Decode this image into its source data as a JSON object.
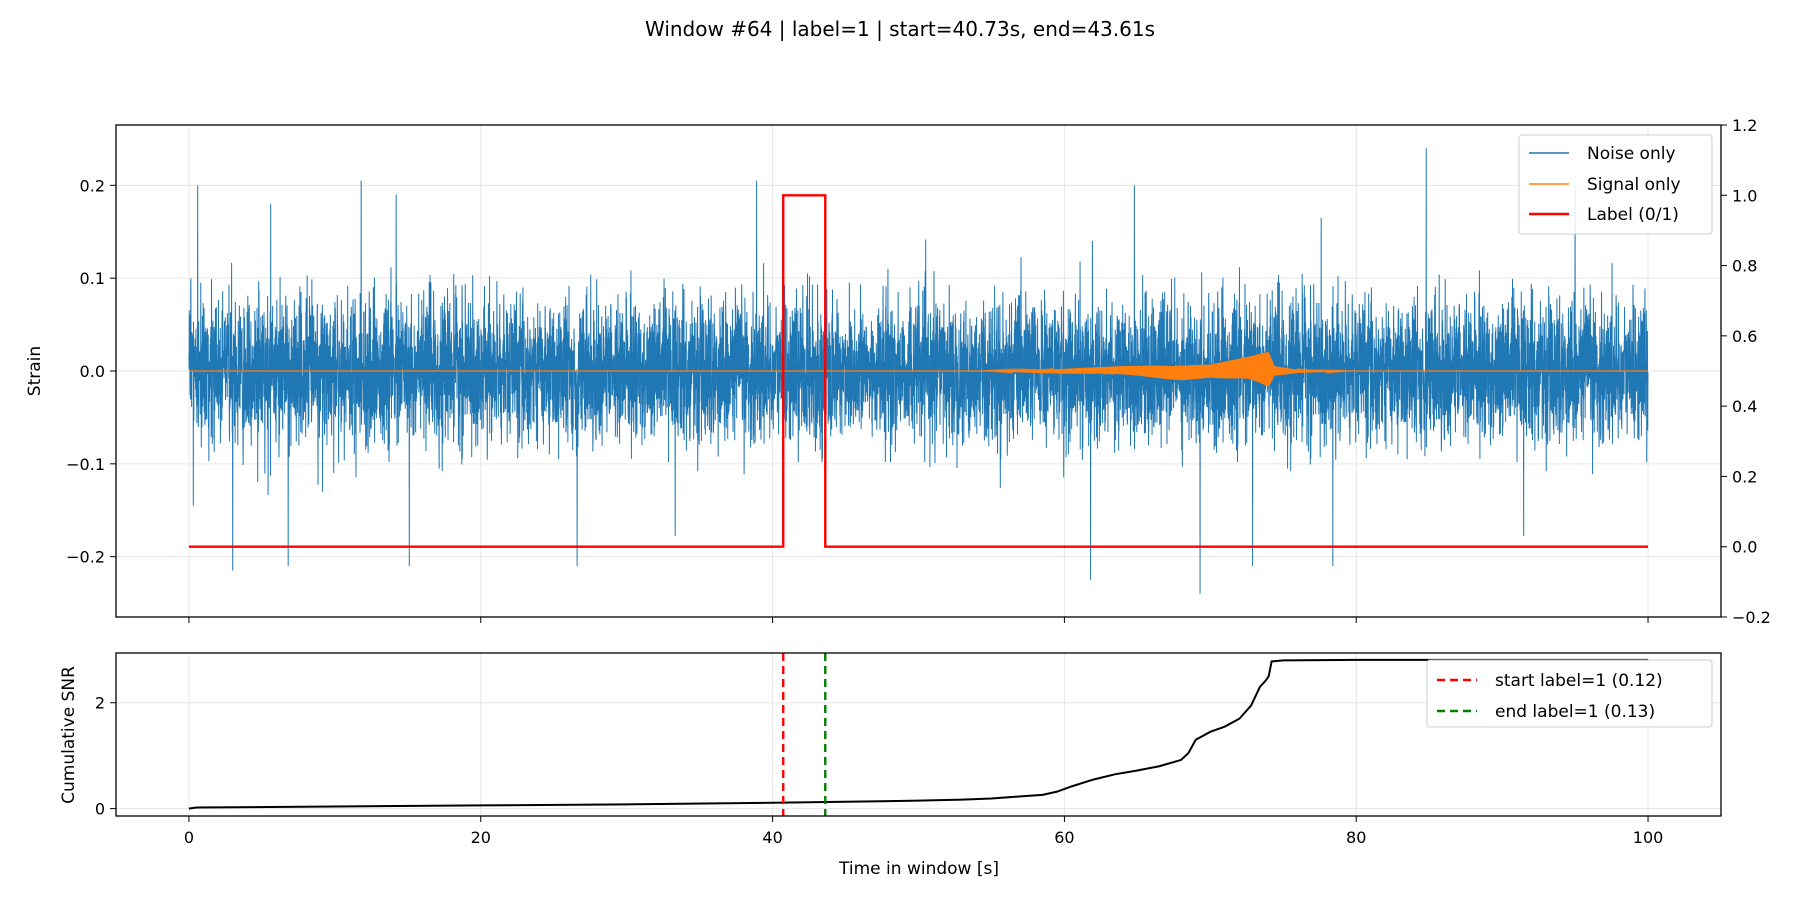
{
  "figure": {
    "title": "Window #64 | label=1 | start=40.73s, end=43.61s"
  },
  "colors": {
    "noise": "#1f77b4",
    "signal": "#ff7f0e",
    "label": "#ff0000",
    "snr": "#000000",
    "start_line": "#ff0000",
    "end_line": "#008000",
    "grid": "#e6e6e6"
  },
  "chart_data": [
    {
      "type": "line",
      "id": "strain-panel",
      "xlabel": "",
      "ylabel": "Strain",
      "xlim": [
        -5,
        105
      ],
      "ylim": [
        -0.265,
        0.265
      ],
      "xticks": [
        0,
        20,
        40,
        60,
        80,
        100
      ],
      "yticks": [
        -0.2,
        -0.1,
        0.0,
        0.1,
        0.2
      ],
      "ytick_labels": [
        "−0.2",
        "−0.1",
        "0.0",
        "0.1",
        "0.2"
      ],
      "grid": true,
      "legend_position": "top-right",
      "series": [
        {
          "name": "Noise only",
          "axis": "left",
          "kind": "noise-band",
          "x_range": [
            0,
            100
          ],
          "typical_amplitude": 0.1,
          "peak_amplitude": 0.24,
          "peaks": [
            {
              "x": 0.3,
              "y": -0.145
            },
            {
              "x": 0.6,
              "y": 0.2
            },
            {
              "x": 3.0,
              "y": -0.215
            },
            {
              "x": 5.6,
              "y": 0.18
            },
            {
              "x": 6.8,
              "y": -0.21
            },
            {
              "x": 11.8,
              "y": 0.205
            },
            {
              "x": 14.2,
              "y": 0.19
            },
            {
              "x": 15.1,
              "y": -0.21
            },
            {
              "x": 26.6,
              "y": -0.21
            },
            {
              "x": 38.9,
              "y": 0.205
            },
            {
              "x": 61.8,
              "y": -0.225
            },
            {
              "x": 64.8,
              "y": 0.2
            },
            {
              "x": 69.3,
              "y": -0.24
            },
            {
              "x": 72.9,
              "y": -0.21
            },
            {
              "x": 77.6,
              "y": 0.165
            },
            {
              "x": 78.4,
              "y": -0.21
            },
            {
              "x": 84.8,
              "y": 0.24
            },
            {
              "x": 95.0,
              "y": 0.2
            }
          ]
        },
        {
          "name": "Signal only",
          "axis": "left",
          "kind": "chirp",
          "baseline": 0.0,
          "envelope": [
            {
              "x": 0,
              "y": 0.0
            },
            {
              "x": 54,
              "y": 0.0
            },
            {
              "x": 58,
              "y": 0.002
            },
            {
              "x": 62,
              "y": 0.004
            },
            {
              "x": 65,
              "y": 0.006
            },
            {
              "x": 68,
              "y": 0.01
            },
            {
              "x": 70,
              "y": 0.008
            },
            {
              "x": 71.5,
              "y": 0.012
            },
            {
              "x": 72.8,
              "y": 0.016
            },
            {
              "x": 73.6,
              "y": 0.02
            },
            {
              "x": 74.0,
              "y": 0.022
            },
            {
              "x": 74.4,
              "y": 0.006
            },
            {
              "x": 76,
              "y": 0.002
            },
            {
              "x": 80,
              "y": 0.0
            },
            {
              "x": 100,
              "y": 0.0
            }
          ]
        },
        {
          "name": "Label (0/1)",
          "axis": "right",
          "kind": "step",
          "points": [
            {
              "x": 0,
              "y": 0
            },
            {
              "x": 40.73,
              "y": 0
            },
            {
              "x": 40.73,
              "y": 1
            },
            {
              "x": 43.61,
              "y": 1
            },
            {
              "x": 43.61,
              "y": 0
            },
            {
              "x": 100,
              "y": 0
            }
          ]
        }
      ],
      "right_axis": {
        "ylim": [
          -0.2,
          1.2
        ],
        "yticks": [
          -0.2,
          0.0,
          0.2,
          0.4,
          0.6,
          0.8,
          1.0,
          1.2
        ],
        "ytick_labels": [
          "−0.2",
          "0.0",
          "0.2",
          "0.4",
          "0.6",
          "0.8",
          "1.0",
          "1.2"
        ]
      }
    },
    {
      "type": "line",
      "id": "snr-panel",
      "xlabel": "Time in window [s]",
      "ylabel": "Cumulative SNR",
      "xlim": [
        -5,
        105
      ],
      "ylim": [
        -0.14,
        2.94
      ],
      "xticks": [
        0,
        20,
        40,
        60,
        80,
        100
      ],
      "xtick_labels": [
        "0",
        "20",
        "40",
        "60",
        "80",
        "100"
      ],
      "yticks": [
        0,
        2
      ],
      "ytick_labels": [
        "0",
        "2"
      ],
      "grid": true,
      "legend_position": "top-right",
      "series": [
        {
          "name": "",
          "points": [
            {
              "x": 0,
              "y": 0.0
            },
            {
              "x": 0.5,
              "y": 0.02
            },
            {
              "x": 10,
              "y": 0.04
            },
            {
              "x": 20,
              "y": 0.06
            },
            {
              "x": 30,
              "y": 0.08
            },
            {
              "x": 40,
              "y": 0.11
            },
            {
              "x": 45,
              "y": 0.13
            },
            {
              "x": 50,
              "y": 0.15
            },
            {
              "x": 53,
              "y": 0.17
            },
            {
              "x": 55,
              "y": 0.19
            },
            {
              "x": 57,
              "y": 0.23
            },
            {
              "x": 58.5,
              "y": 0.26
            },
            {
              "x": 59.5,
              "y": 0.32
            },
            {
              "x": 60.5,
              "y": 0.42
            },
            {
              "x": 62,
              "y": 0.55
            },
            {
              "x": 63.5,
              "y": 0.65
            },
            {
              "x": 65,
              "y": 0.72
            },
            {
              "x": 66.5,
              "y": 0.8
            },
            {
              "x": 68,
              "y": 0.92
            },
            {
              "x": 68.5,
              "y": 1.05
            },
            {
              "x": 69,
              "y": 1.3
            },
            {
              "x": 70,
              "y": 1.45
            },
            {
              "x": 71,
              "y": 1.55
            },
            {
              "x": 72,
              "y": 1.7
            },
            {
              "x": 72.8,
              "y": 1.95
            },
            {
              "x": 73.4,
              "y": 2.3
            },
            {
              "x": 73.8,
              "y": 2.42
            },
            {
              "x": 74.0,
              "y": 2.5
            },
            {
              "x": 74.2,
              "y": 2.78
            },
            {
              "x": 75,
              "y": 2.8
            },
            {
              "x": 80,
              "y": 2.81
            },
            {
              "x": 100,
              "y": 2.81
            }
          ]
        }
      ],
      "vlines": [
        {
          "name": "start label=1 (0.12)",
          "x": 40.73,
          "style": "dashed",
          "color": "#ff0000"
        },
        {
          "name": "end label=1 (0.13)",
          "x": 43.61,
          "style": "dashed",
          "color": "#008000"
        }
      ]
    }
  ]
}
